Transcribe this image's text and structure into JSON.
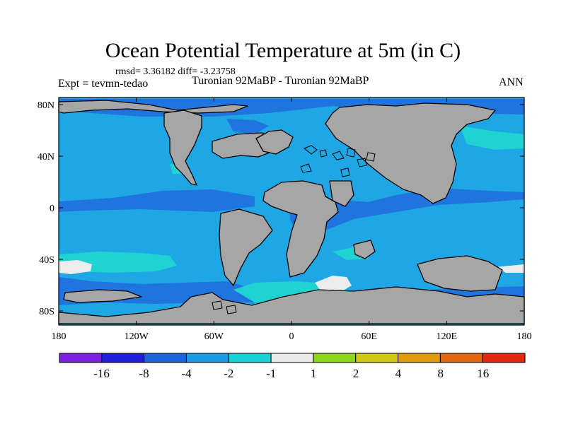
{
  "map": {
    "title": "Ocean Potential Temperature at 5m (in C)",
    "stats": "rmsd= 3.36182 diff= -3.23758",
    "left_label": "Expt = tevmn-tedao",
    "center_label": "Turonian  92MaBP - Turonian  92MaBP",
    "right_label": "ANN",
    "lat_labels": [
      "80N",
      "40N",
      "0",
      "40S",
      "80S"
    ],
    "lon_labels": [
      "180",
      "120W",
      "60W",
      "0",
      "60E",
      "120E",
      "180"
    ]
  },
  "colorbar": {
    "labels": [
      "-16",
      "-8",
      "-4",
      "-2",
      "-1",
      "1",
      "2",
      "4",
      "8",
      "16"
    ],
    "colors": [
      "#7f1fe0",
      "#2020d8",
      "#1e64dc",
      "#1c9ae4",
      "#1ad2d6",
      "#e8e8e8",
      "#8ed61a",
      "#d2c81a",
      "#e09a10",
      "#e06810",
      "#e02a10"
    ]
  },
  "colors": {
    "land": "#a6a6a6",
    "ocean": "#1fa6e4",
    "cool": "#1f74de",
    "mild": "#1fd3d3",
    "neutral": "#ececec"
  }
}
